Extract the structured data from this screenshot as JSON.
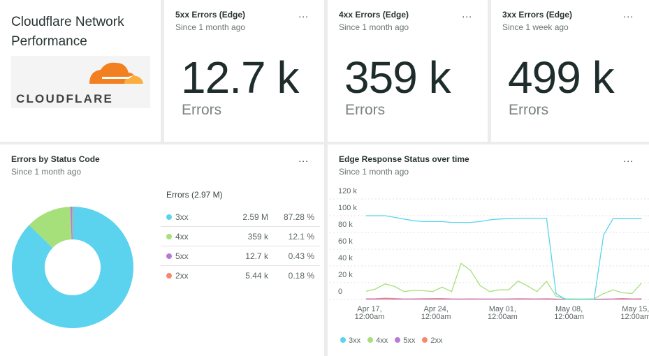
{
  "dashboard": {
    "title": "Cloudflare Network Performance",
    "logo_text": "CLOUDFLARE"
  },
  "menu_label": "...",
  "kpis": [
    {
      "title": "5xx Errors (Edge)",
      "subtitle": "Since 1 month ago",
      "value": "12.7 k",
      "unit": "Errors"
    },
    {
      "title": "4xx Errors (Edge)",
      "subtitle": "Since 1 month ago",
      "value": "359 k",
      "unit": "Errors"
    },
    {
      "title": "3xx Errors (Edge)",
      "subtitle": "Since 1 week ago",
      "value": "499 k",
      "unit": "Errors"
    }
  ],
  "colors": {
    "3xx": "#5bd3ee",
    "4xx": "#a6e07a",
    "5xx": "#b77ad8",
    "2xx": "#f5896c"
  },
  "chart_data": [
    {
      "type": "pie",
      "title": "Errors by Status Code",
      "subtitle": "Since 1 month ago",
      "donut": true,
      "total_label": "Errors (2.97 M)",
      "rows": [
        {
          "label": "3xx",
          "value": "2.59 M",
          "percent": "87.28 %",
          "pct": 87.28,
          "color": "#5bd3ee"
        },
        {
          "label": "4xx",
          "value": "359 k",
          "percent": "12.1 %",
          "pct": 12.1,
          "color": "#a6e07a"
        },
        {
          "label": "5xx",
          "value": "12.7 k",
          "percent": "0.43 %",
          "pct": 0.43,
          "color": "#b77ad8"
        },
        {
          "label": "2xx",
          "value": "5.44 k",
          "percent": "0.18 %",
          "pct": 0.18,
          "color": "#f5896c"
        }
      ]
    },
    {
      "type": "line",
      "title": "Edge Response Status over time",
      "subtitle": "Since 1 month ago",
      "ylim": [
        0,
        120000
      ],
      "yticks": [
        "120 k",
        "100 k",
        "80 k",
        "60 k",
        "40 k",
        "20 k",
        "0"
      ],
      "xticks": [
        {
          "l1": "Apr 17,",
          "l2": "12:00am",
          "day": 0
        },
        {
          "l1": "Apr 24,",
          "l2": "12:00am",
          "day": 7
        },
        {
          "l1": "May 01,",
          "l2": "12:00am",
          "day": 14
        },
        {
          "l1": "May 08,",
          "l2": "12:00am",
          "day": 21
        },
        {
          "l1": "May 15,",
          "l2": "12:00am",
          "day": 28
        }
      ],
      "x_start": "Apr 17",
      "grid": true,
      "legend": "bottom",
      "series": [
        {
          "name": "3xx",
          "color": "#5bd3ee",
          "values": [
            100000,
            100000,
            100000,
            98000,
            96000,
            94000,
            93000,
            93000,
            93000,
            92000,
            92000,
            92000,
            93000,
            95000,
            96000,
            96500,
            97000,
            97000,
            97000,
            97000,
            7000,
            0,
            0,
            0,
            0,
            77000,
            96500,
            96500,
            96500,
            96500
          ]
        },
        {
          "name": "4xx",
          "color": "#a6e07a",
          "values": [
            9700,
            12500,
            18600,
            15500,
            9400,
            10800,
            10500,
            9400,
            14700,
            9400,
            43000,
            34700,
            16700,
            9400,
            11400,
            11400,
            22000,
            16000,
            9400,
            21700,
            3900,
            800,
            600,
            600,
            800,
            7000,
            11400,
            8000,
            7200,
            19700
          ]
        },
        {
          "name": "5xx",
          "color": "#b77ad8",
          "values": [
            300,
            300,
            400,
            300,
            300,
            300,
            300,
            300,
            300,
            300,
            300,
            300,
            300,
            300,
            300,
            300,
            300,
            300,
            300,
            300,
            200,
            100,
            100,
            100,
            100,
            200,
            300,
            300,
            300,
            300
          ]
        },
        {
          "name": "2xx",
          "color": "#f5896c",
          "values": [
            800,
            900,
            1500,
            1200,
            600,
            700,
            900,
            1000,
            1100,
            700,
            600,
            700,
            600,
            600,
            600,
            700,
            900,
            800,
            700,
            900,
            500,
            300,
            300,
            300,
            300,
            500,
            700,
            1200,
            700,
            800
          ]
        }
      ]
    }
  ]
}
